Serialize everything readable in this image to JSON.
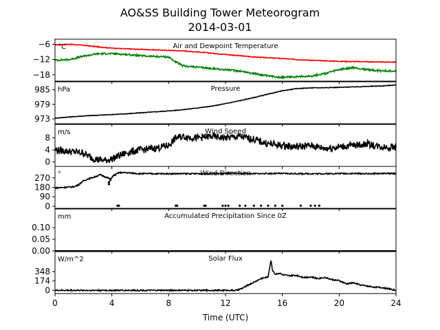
{
  "title_line1": "AO&SS Building Tower Meteorogram",
  "title_line2": "2014-03-01",
  "chart_data": {
    "type": "line",
    "xlabel": "Time (UTC)",
    "xlim": [
      0,
      24
    ],
    "xticks": [
      0,
      4,
      8,
      12,
      16,
      20,
      24
    ],
    "xtick_labels": [
      "0",
      "4",
      "8",
      "12",
      "16",
      "20",
      "24"
    ],
    "panels": [
      {
        "title": "Air and Dewpoint Temperature",
        "unit": "°C",
        "ylim": [
          -20.5,
          -4
        ],
        "yticks": [
          -6,
          -12,
          -18
        ],
        "ytick_labels": [
          "−6",
          "−12",
          "−18"
        ],
        "series": [
          {
            "color": "#ff0000",
            "x": [
              0,
              1,
              2,
              3,
              4,
              5,
              6,
              7,
              8,
              9,
              10,
              11,
              12,
              13,
              14,
              15,
              16,
              17,
              18,
              19,
              20,
              21,
              22,
              23,
              24
            ],
            "y": [
              -6.2,
              -6.0,
              -6.4,
              -7.0,
              -7.5,
              -7.8,
              -8.0,
              -8.2,
              -8.4,
              -8.6,
              -9.0,
              -9.5,
              -10.0,
              -10.5,
              -11.0,
              -11.3,
              -11.6,
              -12.0,
              -12.3,
              -12.5,
              -12.7,
              -12.8,
              -12.9,
              -13.0,
              -13.0
            ],
            "wiggle": 0.15
          },
          {
            "color": "#008000",
            "x": [
              0,
              1,
              2,
              3,
              4,
              5,
              6,
              7,
              8,
              8.5,
              9,
              10,
              11,
              12,
              13,
              14,
              15,
              16,
              17,
              18,
              19,
              20,
              21,
              22,
              23,
              24
            ],
            "y": [
              -12.3,
              -12.0,
              -10.7,
              -9.7,
              -9.7,
              -10.0,
              -10.5,
              -10.8,
              -11.0,
              -13.0,
              -14.5,
              -15.0,
              -15.5,
              -16.0,
              -16.5,
              -17.5,
              -18.5,
              -19.0,
              -18.8,
              -18.5,
              -17.5,
              -16.0,
              -15.2,
              -16.0,
              -16.5,
              -16.5
            ],
            "wiggle": 0.35
          }
        ]
      },
      {
        "title": "Pressure",
        "unit": "hPa",
        "ylim": [
          971,
          988.3
        ],
        "yticks": [
          973,
          979,
          985
        ],
        "ytick_labels": [
          "973",
          "979",
          "985"
        ],
        "series": [
          {
            "color": "#000000",
            "x": [
              0,
              1,
              2,
              3,
              4,
              5,
              6,
              7,
              8,
              9,
              10,
              11,
              12,
              13,
              14,
              15,
              16,
              17,
              18,
              19,
              20,
              21,
              22,
              23,
              24
            ],
            "y": [
              973.3,
              973.8,
              974.2,
              974.5,
              974.8,
              975.1,
              975.5,
              975.9,
              976.3,
              976.8,
              977.5,
              978.2,
              979.3,
              980.5,
              981.8,
              983.2,
              984.6,
              985.5,
              985.8,
              985.9,
              986.0,
              986.2,
              986.4,
              986.6,
              987.0
            ],
            "wiggle": 0.12
          }
        ]
      },
      {
        "title": "Wind Speed",
        "unit": "m/s",
        "ylim": [
          -1.5,
          12.5
        ],
        "yticks": [
          0,
          4,
          8
        ],
        "ytick_labels": [
          "0",
          "4",
          "8"
        ],
        "series": [
          {
            "color": "#000000",
            "x": [
              0,
              1,
              2,
              2.5,
              3,
              3.5,
              4,
              5,
              6,
              7,
              8,
              8.5,
              9,
              10,
              11,
              12,
              13,
              14,
              15,
              16,
              17,
              18,
              19,
              20,
              21,
              22,
              23,
              24
            ],
            "y": [
              4.0,
              3.5,
              3.0,
              1.5,
              0.8,
              0.5,
              1.0,
              3.0,
              4.0,
              4.5,
              5.5,
              8.0,
              8.5,
              8.0,
              8.5,
              8.0,
              8.5,
              7.5,
              6.0,
              5.5,
              5.0,
              5.5,
              4.5,
              5.0,
              5.5,
              6.0,
              5.0,
              5.0
            ],
            "wiggle": 1.2
          }
        ]
      },
      {
        "title": "Wind Direction",
        "unit": "°",
        "ylim": [
          -20,
          380
        ],
        "yticks": [
          0,
          90,
          180,
          270
        ],
        "ytick_labels": [
          "0",
          "90",
          "180",
          "270"
        ],
        "series": [
          {
            "color": "#000000",
            "x": [
              0,
              0.7,
              1.3,
              1.6,
              2.0,
              2.3,
              2.7,
              3.2,
              3.7,
              3.9,
              4.1,
              4.5,
              5,
              6,
              7,
              8,
              9,
              10,
              11,
              12,
              13,
              14,
              15,
              16,
              17,
              18,
              19,
              20,
              21,
              22,
              23,
              24
            ],
            "y": [
              175,
              180,
              185,
              200,
              240,
              260,
              275,
              300,
              270,
              260,
              290,
              320,
              320,
              310,
              310,
              310,
              310,
              310,
              310,
              312,
              312,
              310,
              312,
              312,
              310,
              310,
              310,
              312,
              312,
              310,
              312,
              312
            ],
            "wiggle": 6
          }
        ],
        "points": {
          "color": "#000000",
          "x": [
            3.8,
            3.8,
            3.9,
            4.4,
            4.5,
            8.5,
            8.6,
            10.5,
            10.6,
            11.8,
            12.0,
            12.2,
            13.0,
            13.4,
            14.0,
            14.5,
            15.0,
            15.5,
            16.0,
            17.3,
            18.0,
            18.3,
            18.6
          ],
          "y": [
            230,
            210,
            250,
            5,
            5,
            5,
            5,
            5,
            5,
            5,
            5,
            5,
            5,
            5,
            5,
            5,
            5,
            5,
            5,
            5,
            5,
            5,
            5
          ]
        }
      },
      {
        "title": "Accumulated Precipitation Since 0Z",
        "unit": "mm",
        "ylim": [
          0,
          0.18
        ],
        "yticks": [
          0.0,
          0.05,
          0.1
        ],
        "ytick_labels": [
          "0.00",
          "0.05",
          "0.10"
        ],
        "series": [
          {
            "color": "#000000",
            "x": [
              0,
              24
            ],
            "y": [
              0,
              0
            ],
            "wiggle": 0
          }
        ]
      },
      {
        "title": "Solar Flux",
        "unit": "W/m^2",
        "ylim": [
          -60,
          720
        ],
        "yticks": [
          0,
          174,
          348
        ],
        "ytick_labels": [
          "0",
          "174",
          "348"
        ],
        "series": [
          {
            "color": "#000000",
            "x": [
              0,
              12.8,
              13.2,
              13.6,
              14.0,
              14.5,
              15.0,
              15.1,
              15.2,
              15.3,
              15.5,
              15.8,
              16.0,
              16.5,
              17.0,
              17.5,
              18.0,
              18.5,
              19.0,
              19.5,
              20.0,
              20.5,
              21.0,
              21.5,
              22.0,
              22.5,
              23.0,
              23.5,
              24
            ],
            "y": [
              0,
              0,
              40,
              100,
              150,
              220,
              250,
              420,
              560,
              380,
              300,
              320,
              290,
              270,
              280,
              240,
              250,
              220,
              240,
              200,
              180,
              120,
              140,
              100,
              80,
              60,
              50,
              30,
              0
            ],
            "wiggle": 12
          }
        ]
      }
    ]
  }
}
